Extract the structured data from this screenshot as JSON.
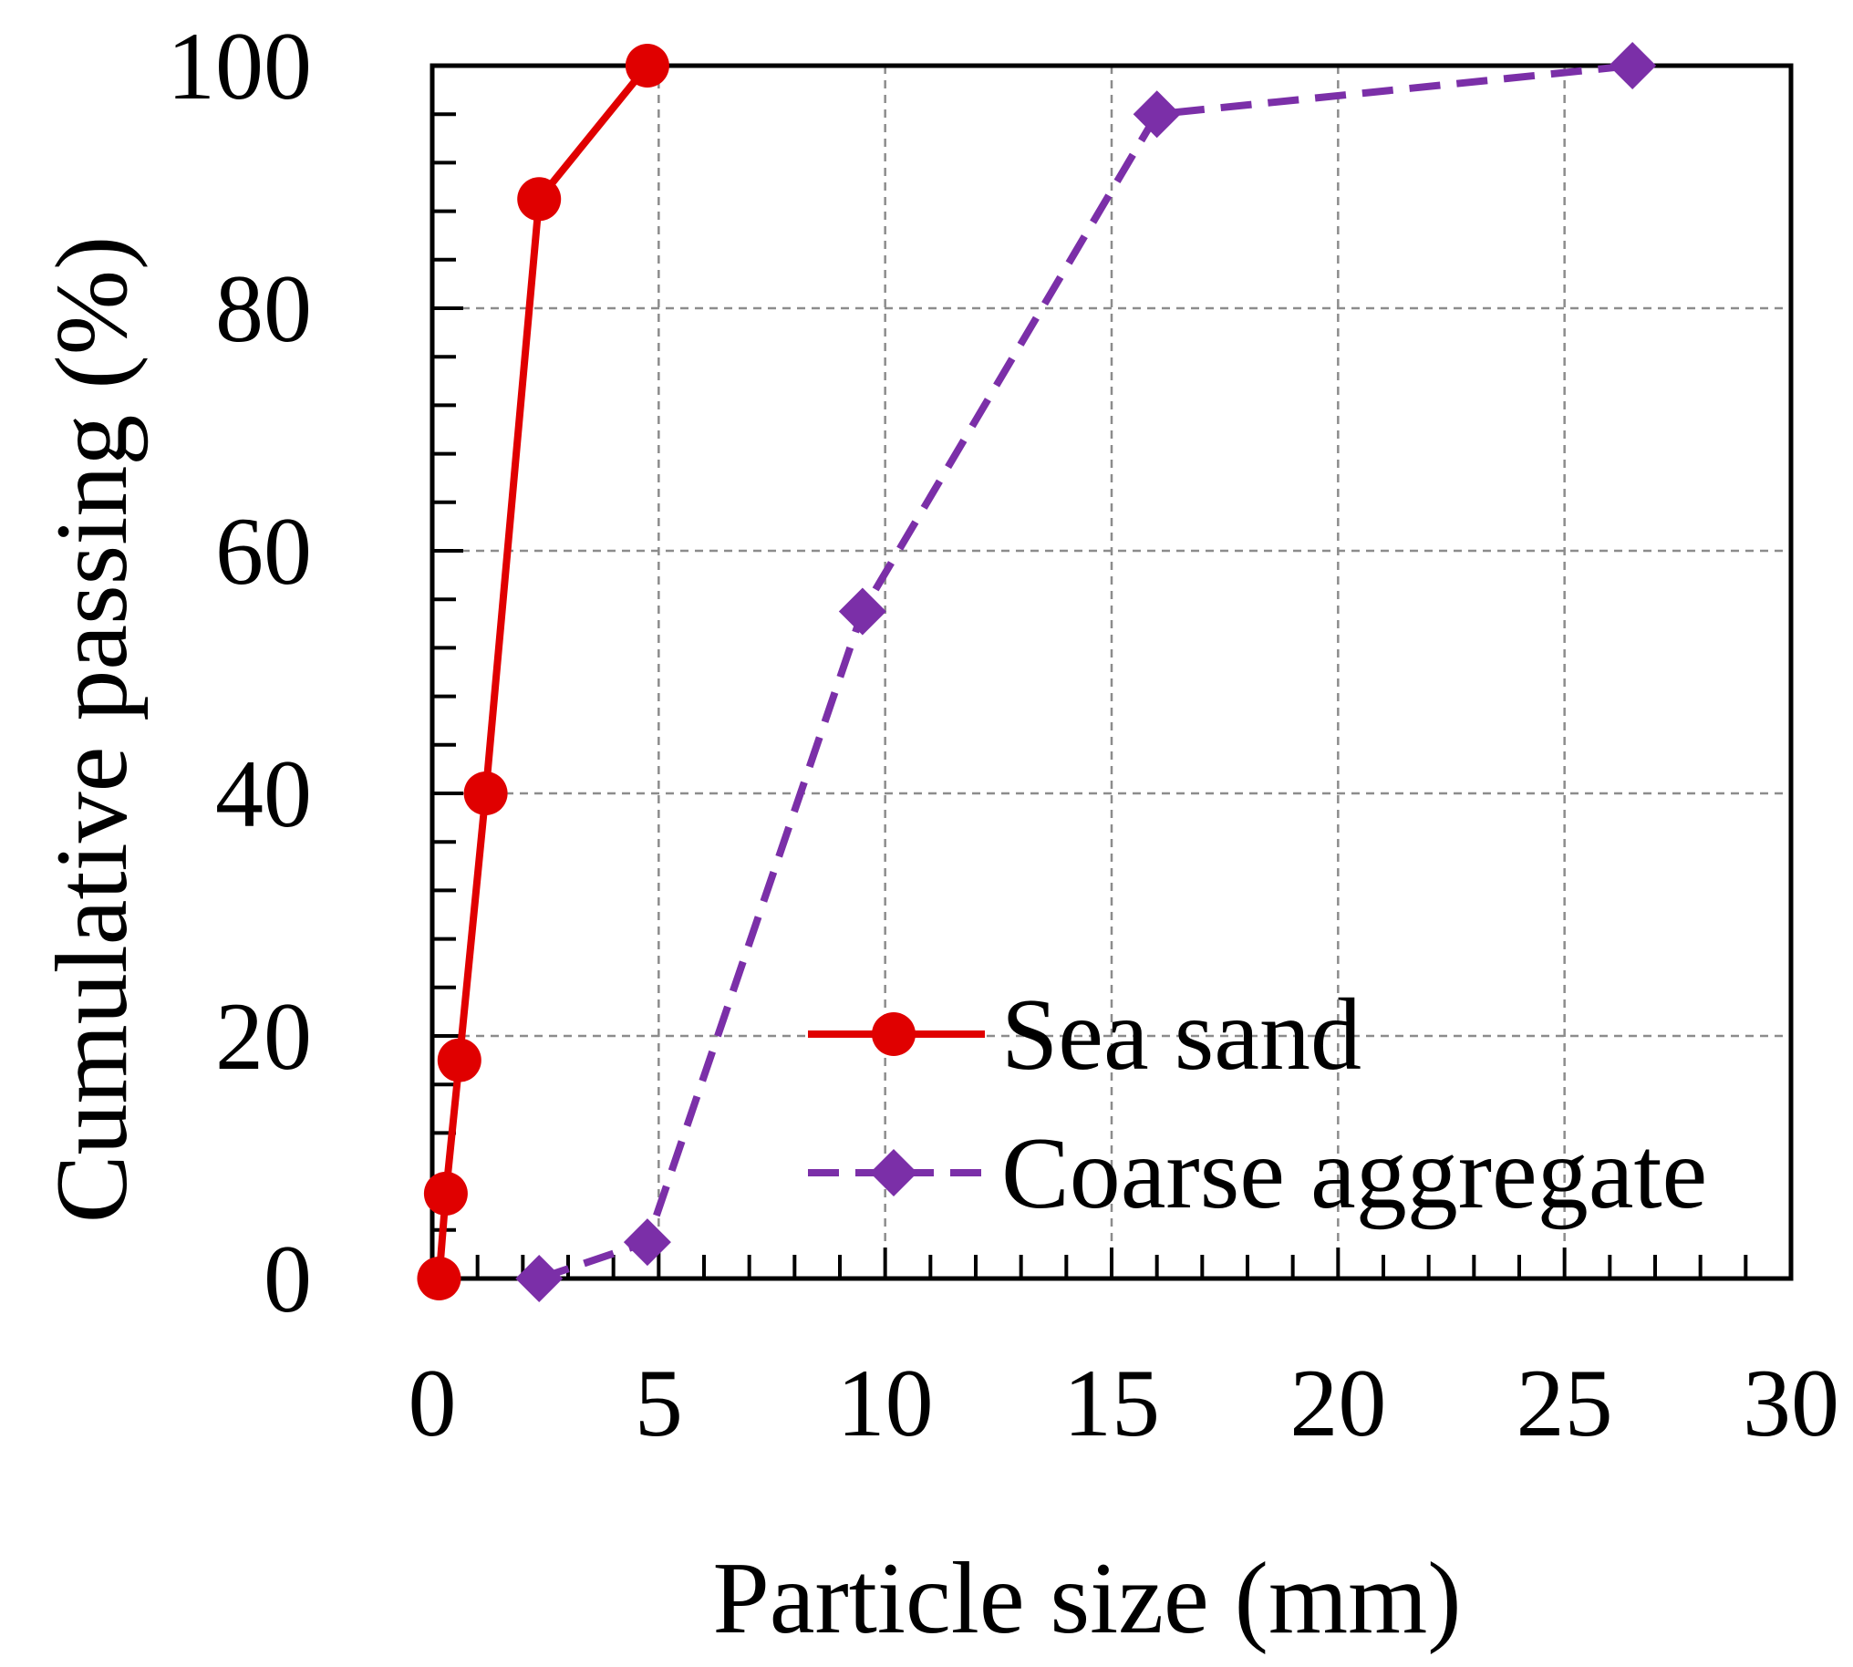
{
  "chart_data": {
    "type": "line",
    "title": "",
    "xlabel": "Particle size (mm)",
    "ylabel": "Cumulative passing (%)",
    "xlim": [
      0,
      30
    ],
    "ylim": [
      0,
      100
    ],
    "x_ticks": [
      0,
      5,
      10,
      15,
      20,
      25,
      30
    ],
    "y_ticks": [
      0,
      20,
      40,
      60,
      80,
      100
    ],
    "x_tick_labels": [
      "0",
      "5",
      "10",
      "15",
      "20",
      "25",
      "30"
    ],
    "y_tick_labels": [
      "0",
      "20",
      "40",
      "60",
      "80",
      "100"
    ],
    "x_minor_step": 1,
    "y_minor_step": 4,
    "grid": true,
    "legend_position": "bottom-right",
    "series": [
      {
        "name": "Sea sand",
        "color": "#e00000",
        "line_style": "solid",
        "marker": "circle",
        "x": [
          0.15,
          0.3,
          0.6,
          1.18,
          2.36,
          4.75
        ],
        "y": [
          0,
          7,
          18,
          40,
          89,
          100
        ]
      },
      {
        "name": "Coarse aggregate",
        "color": "#7b2fa8",
        "line_style": "dashed",
        "marker": "diamond",
        "x": [
          2.36,
          4.75,
          9.5,
          16,
          26.5
        ],
        "y": [
          0,
          3,
          55,
          96,
          100
        ]
      }
    ]
  }
}
